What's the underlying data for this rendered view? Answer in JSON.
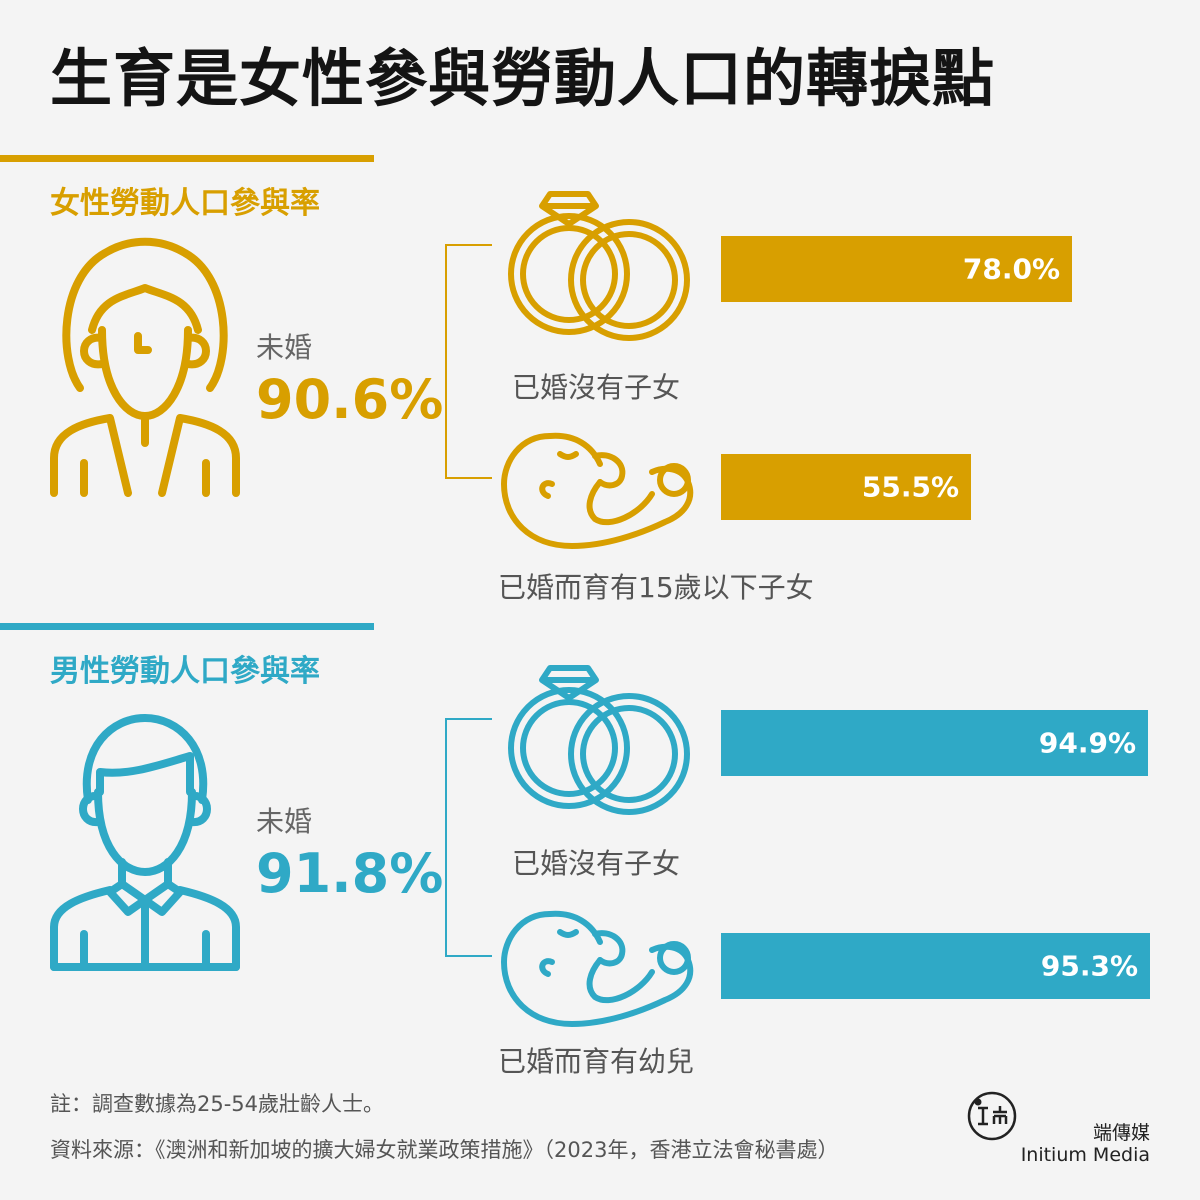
{
  "title": "生育是女性參與勞動人口的轉捩點",
  "colors": {
    "female": "#d89f00",
    "male": "#2fa9c6"
  },
  "female": {
    "section_title": "女性勞動人口參與率",
    "unmarried_label": "未婚",
    "unmarried_value": "90.6%",
    "married_no_children_label": "已婚沒有子女",
    "married_with_children_label": "已婚而育有15歲以下子女"
  },
  "male": {
    "section_title": "男性勞動人口參與率",
    "unmarried_label": "未婚",
    "unmarried_value": "91.8%",
    "married_no_children_label": "已婚沒有子女",
    "married_with_children_label": "已婚而育有幼兒"
  },
  "chart_data": [
    {
      "type": "bar",
      "categories": [
        "未婚",
        "已婚沒有子女",
        "已婚而育有15歲以下子女"
      ],
      "values": [
        90.6,
        78.0,
        55.5
      ],
      "title": "女性勞動人口參與率"
    },
    {
      "type": "bar",
      "categories": [
        "未婚",
        "已婚沒有子女",
        "已婚而育有幼兒"
      ],
      "values": [
        91.8,
        94.9,
        95.3
      ],
      "title": "男性勞動人口參與率"
    }
  ],
  "bars": {
    "f1": "78.0%",
    "f2": "55.5%",
    "m1": "94.9%",
    "m2": "95.3%"
  },
  "footer": {
    "note": "註：調查數據為25-54歲壯齡人士。",
    "source": "資料來源：《澳洲和新加坡的擴大婦女就業政策措施》（2023年，香港立法會秘書處）",
    "brand_cn": "端傳媒",
    "brand_en": "Initium Media"
  }
}
